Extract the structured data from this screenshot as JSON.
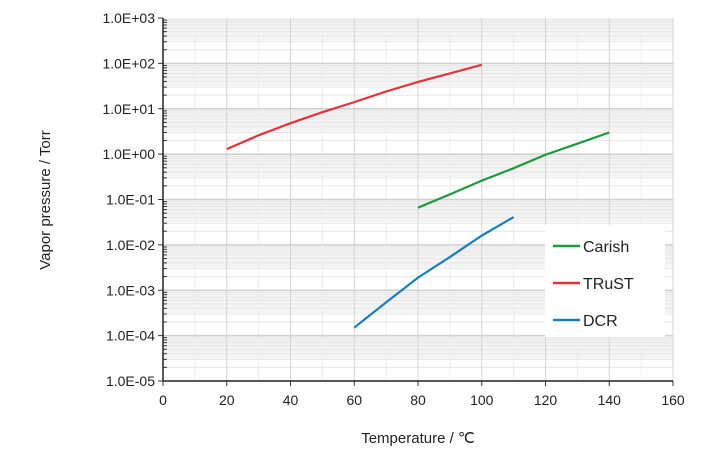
{
  "chart_data": {
    "type": "line",
    "title": "",
    "xlabel": "Temperature / ℃",
    "ylabel": "Vapor pressure / Torr",
    "xlim": [
      0,
      160
    ],
    "ylim": [
      1e-05,
      1000
    ],
    "yscale": "log",
    "grid": true,
    "legend_position": "right",
    "x_ticks": [
      "0",
      "20",
      "40",
      "60",
      "80",
      "100",
      "120",
      "140",
      "160"
    ],
    "y_ticks": [
      "1.0E-05",
      "1.0E-04",
      "1.0E-03",
      "1.0E-02",
      "1.0E-01",
      "1.0E+00",
      "1.0E+01",
      "1.0E+02",
      "1.0E+03"
    ],
    "series": [
      {
        "name": "Carish",
        "color": "#1e9a3c",
        "x": [
          80,
          90,
          100,
          110,
          120,
          130,
          140
        ],
        "y": [
          0.066,
          0.13,
          0.26,
          0.49,
          0.97,
          1.7,
          3.0
        ]
      },
      {
        "name": "TRuST",
        "color": "#e0353a",
        "x": [
          20,
          30,
          40,
          50,
          60,
          70,
          80,
          90,
          100
        ],
        "y": [
          1.29,
          2.6,
          4.8,
          8.4,
          14,
          24,
          39,
          60,
          93
        ]
      },
      {
        "name": "DCR",
        "color": "#1a7fb8",
        "x": [
          60,
          70,
          80,
          90,
          100,
          110
        ],
        "y": [
          0.00015,
          0.00054,
          0.0019,
          0.0054,
          0.016,
          0.041
        ]
      }
    ]
  }
}
